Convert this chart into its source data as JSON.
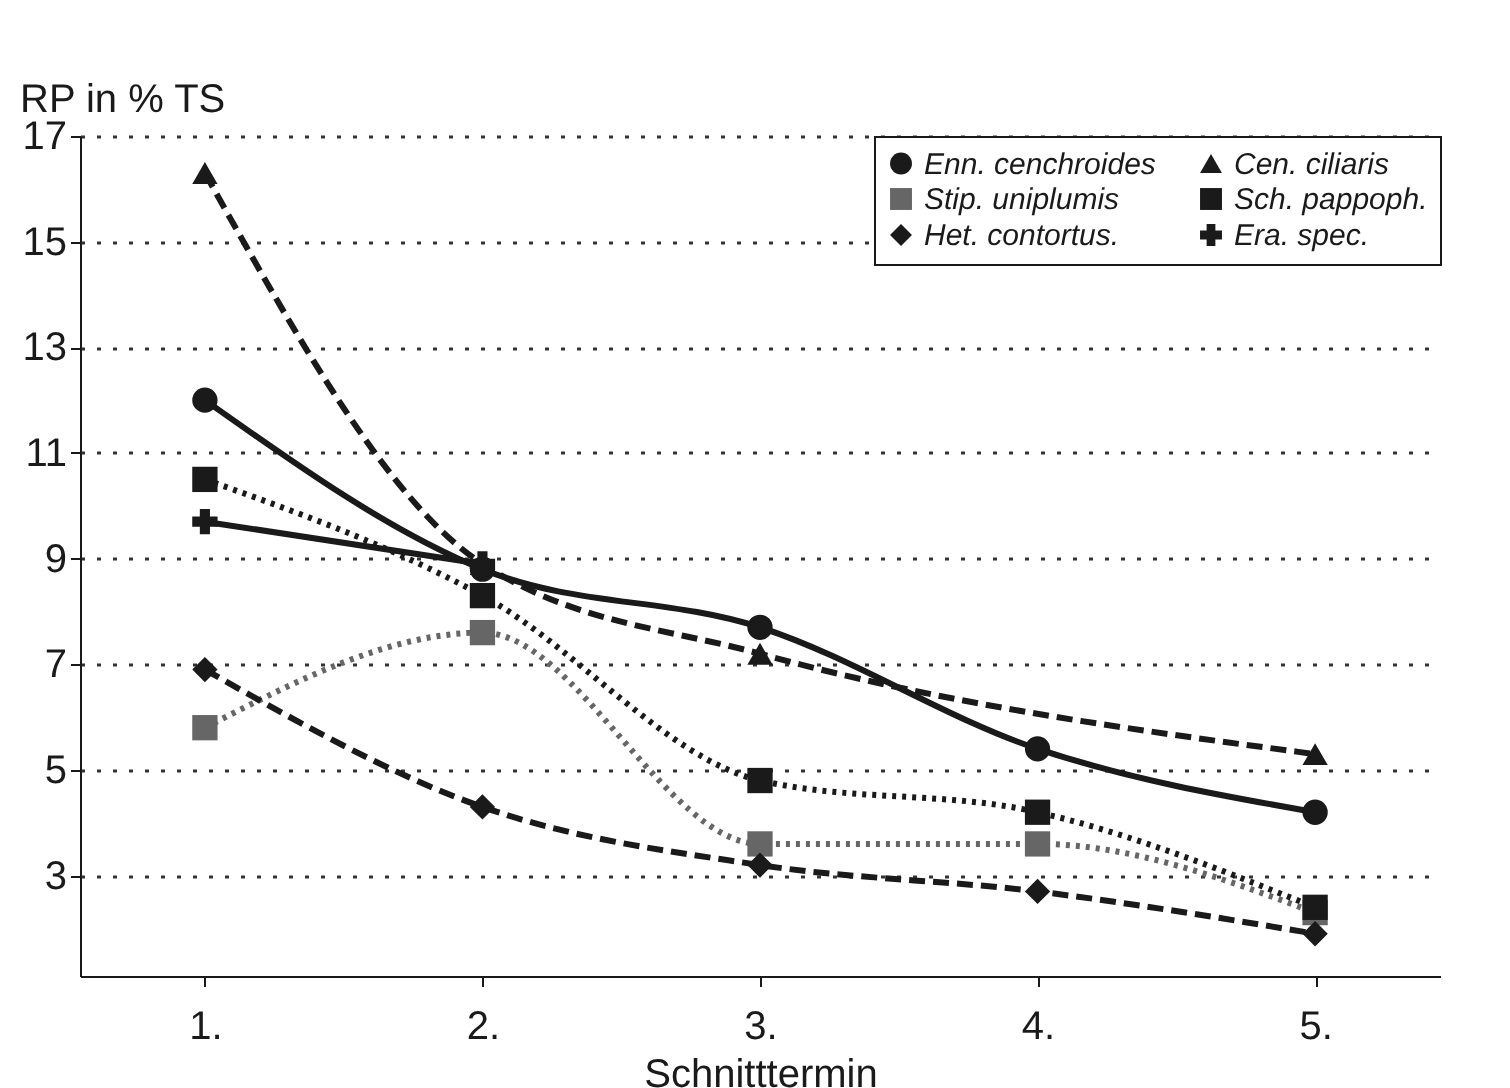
{
  "chart_data": {
    "type": "line",
    "xlabel": "Schnitttermin",
    "ylabel": "RP in % TS",
    "categories": [
      "1.",
      "2.",
      "3.",
      "4.",
      "5."
    ],
    "series": [
      {
        "name": "Enn. cenchroides",
        "color": "#1a1a1a",
        "marker": "circle",
        "line_style": "solid",
        "values": [
          12.0,
          8.8,
          7.7,
          5.4,
          4.2
        ]
      },
      {
        "name": "Stip. uniplumis",
        "color": "#666666",
        "marker": "square",
        "line_style": "dotted",
        "values": [
          5.8,
          7.6,
          3.6,
          3.6,
          2.3
        ]
      },
      {
        "name": "Het. contortus.",
        "color": "#1a1a1a",
        "marker": "diamond",
        "line_style": "dashed",
        "values": [
          6.9,
          4.3,
          3.2,
          2.7,
          1.9
        ]
      },
      {
        "name": "Cen. ciliaris",
        "color": "#1a1a1a",
        "marker": "triangle",
        "line_style": "dashed",
        "values": [
          16.3,
          8.9,
          7.2,
          null,
          5.3
        ]
      },
      {
        "name": "Sch. pappoph.",
        "color": "#1a1a1a",
        "marker": "square",
        "line_style": "dotted",
        "values": [
          10.5,
          8.3,
          4.8,
          4.2,
          2.4
        ]
      },
      {
        "name": "Era. spec.",
        "color": "#1a1a1a",
        "marker": "cross",
        "line_style": "solid",
        "values": [
          9.7,
          8.9,
          null,
          null,
          null
        ]
      }
    ],
    "ylim": [
      1.1,
      17
    ],
    "yticks": [
      3,
      5,
      7,
      9,
      11,
      13,
      15,
      17
    ],
    "grid": "y",
    "legend": "top right"
  }
}
